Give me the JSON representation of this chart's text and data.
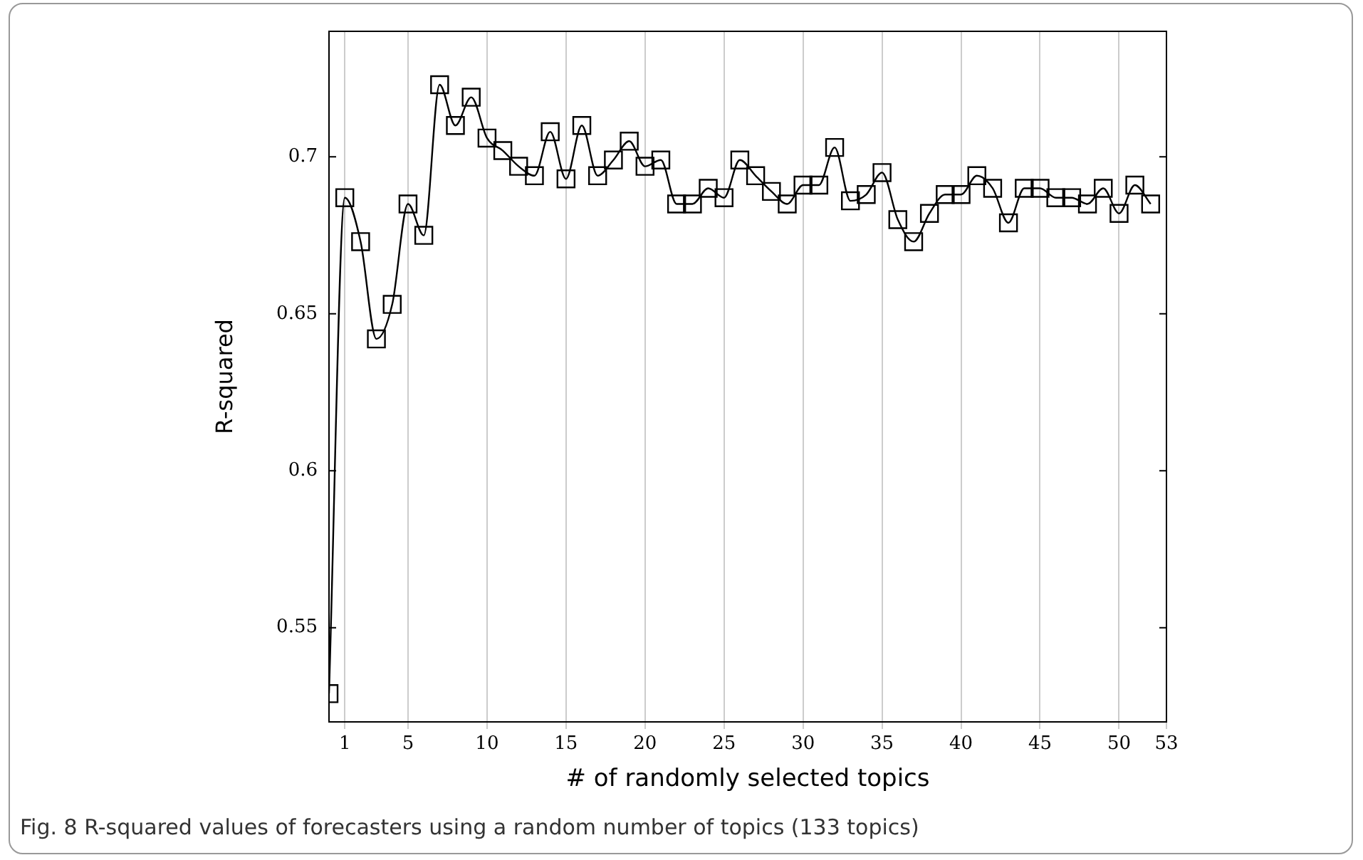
{
  "chart_data": {
    "type": "line",
    "xlabel": "# of randomly selected topics",
    "ylabel": "R-squared",
    "x": [
      0,
      1,
      2,
      3,
      4,
      5,
      6,
      7,
      8,
      9,
      10,
      11,
      12,
      13,
      14,
      15,
      16,
      17,
      18,
      19,
      20,
      21,
      22,
      23,
      24,
      25,
      26,
      27,
      28,
      29,
      30,
      31,
      32,
      33,
      34,
      35,
      36,
      37,
      38,
      39,
      40,
      41,
      42,
      43,
      44,
      45,
      46,
      47,
      48,
      49,
      50,
      51,
      52
    ],
    "series": [
      {
        "color": "#000000",
        "values": [
          0.529,
          0.687,
          0.673,
          0.642,
          0.653,
          0.685,
          0.675,
          0.723,
          0.71,
          0.719,
          0.706,
          0.702,
          0.697,
          0.694,
          0.708,
          0.693,
          0.71,
          0.694,
          0.699,
          0.705,
          0.697,
          0.699,
          0.685,
          0.685,
          0.69,
          0.687,
          0.699,
          0.694,
          0.689,
          0.685,
          0.691,
          0.691,
          0.703,
          0.686,
          0.688,
          0.695,
          0.68,
          0.673,
          0.682,
          0.688,
          0.688,
          0.694,
          0.69,
          0.679,
          0.69,
          0.69,
          0.687,
          0.687,
          0.685,
          0.69,
          0.682,
          0.691,
          0.685
        ]
      }
    ],
    "xlim": [
      0,
      53
    ],
    "xticks": [
      1,
      5,
      10,
      15,
      20,
      25,
      30,
      35,
      40,
      45,
      50,
      53
    ],
    "ylim": [
      0.52,
      0.74
    ],
    "yticks": [
      0.55,
      0.6,
      0.65,
      0.7
    ],
    "grid": "x",
    "marker": "square",
    "line_style": "solid",
    "legend": false,
    "annotations": [
      "Fig. 8  R-squared values of forecasters using a random number of topics (133 topics)"
    ]
  }
}
